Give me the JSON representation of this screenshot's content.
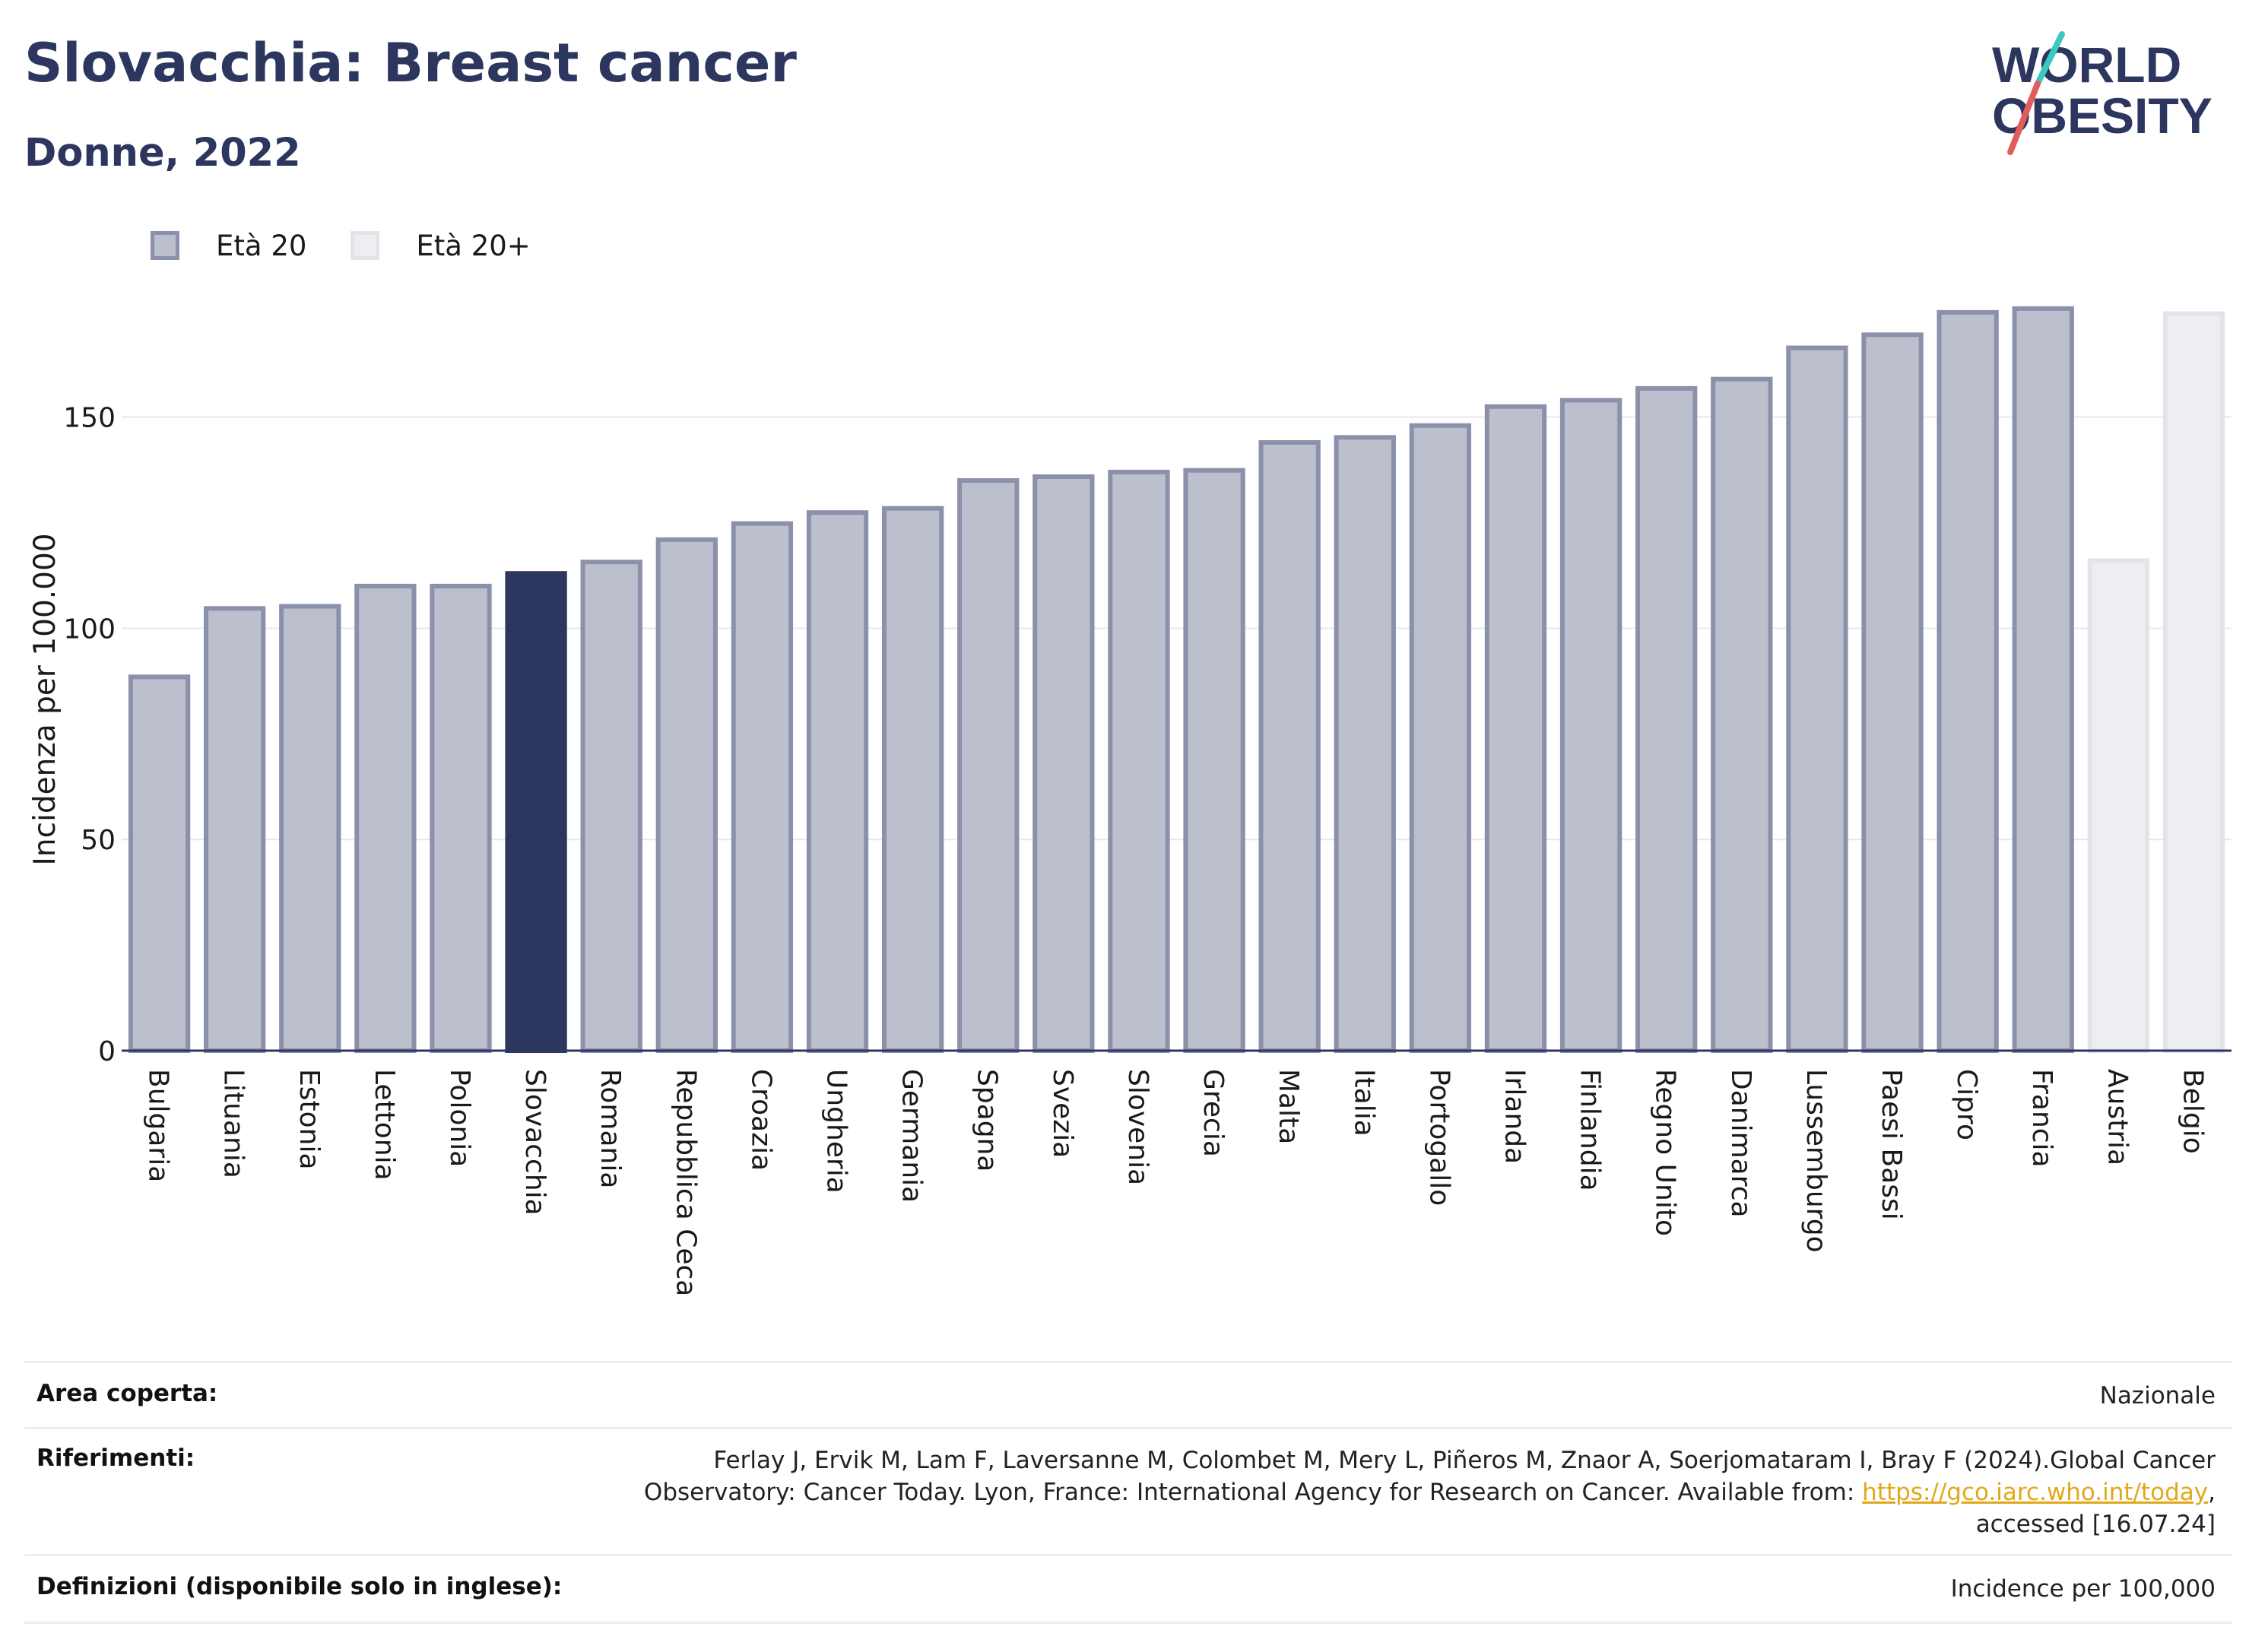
{
  "header": {
    "title": "Slovacchia: Breast cancer",
    "subtitle": "Donne, 2022"
  },
  "logo": {
    "line1": "WORLD",
    "line2": "OBESITY",
    "colors": [
      "#2c365e",
      "#e35c5c",
      "#3cc7c0"
    ]
  },
  "legend": [
    {
      "label": "Età 20",
      "color": "#8b90ab"
    },
    {
      "label": "Età 20+",
      "color": "#e3e4ea"
    }
  ],
  "colors": {
    "bar": "#bcbfcc",
    "bar_border": "#8b90ab",
    "highlight": "#2c365e",
    "bar_light": "#eeeef2",
    "bar_light_border": "#e3e4ea",
    "axis": "#2c365e",
    "grid": "#e6e8ec"
  },
  "chart_data": {
    "type": "bar",
    "title": "Slovacchia: Breast cancer",
    "subtitle": "Donne, 2022",
    "ylabel": "Incidenza per 100.000",
    "xlabel": "",
    "ylim": [
      0,
      180
    ],
    "yticks": [
      0,
      50,
      100,
      150
    ],
    "grid": true,
    "legend_position": "top-left",
    "highlight": "Slovacchia",
    "categories": [
      "Bulgaria",
      "Lituania",
      "Estonia",
      "Lettonia",
      "Polonia",
      "Slovacchia",
      "Romania",
      "Repubblica Ceca",
      "Croazia",
      "Ungheria",
      "Germania",
      "Spagna",
      "Svezia",
      "Slovenia",
      "Grecia",
      "Malta",
      "Italia",
      "Portogallo",
      "Irlanda",
      "Finlandia",
      "Regno Unito",
      "Danimarca",
      "Lussemburgo",
      "Paesi Bassi",
      "Cipro",
      "Francia",
      "Austria",
      "Belgio"
    ],
    "values": [
      88.5,
      104.7,
      105.2,
      110.0,
      110.0,
      113.0,
      115.7,
      121.0,
      124.8,
      127.4,
      128.4,
      135.0,
      135.9,
      137.0,
      137.4,
      144.0,
      145.2,
      148.0,
      152.5,
      154.0,
      156.8,
      159.0,
      166.4,
      169.5,
      174.8,
      175.7,
      116.0,
      174.5
    ],
    "groups": [
      "Età 20",
      "Età 20",
      "Età 20",
      "Età 20",
      "Età 20",
      "Età 20",
      "Età 20",
      "Età 20",
      "Età 20",
      "Età 20",
      "Età 20",
      "Età 20",
      "Età 20",
      "Età 20",
      "Età 20",
      "Età 20",
      "Età 20",
      "Età 20",
      "Età 20",
      "Età 20",
      "Età 20",
      "Età 20",
      "Età 20",
      "Età 20",
      "Età 20",
      "Età 20",
      "Età 20+",
      "Età 20+"
    ]
  },
  "meta": {
    "area_label": "Area coperta:",
    "area_value": "Nazionale",
    "ref_label": "Riferimenti:",
    "ref_text_1": "Ferlay J, Ervik M, Lam F, Laversanne M, Colombet M, Mery L, Piñeros M, Znaor A, Soerjomataram I, Bray F (2024).Global Cancer",
    "ref_text_2": "Observatory: Cancer Today. Lyon, France: International Agency for Research on Cancer. Available from: ",
    "ref_link": "https://gco.iarc.who.int/today",
    "ref_text_3": ",",
    "ref_text_4": "accessed [16.07.24]",
    "def_label": "Definizioni (disponibile solo in inglese):",
    "def_value": "Incidence per 100,000"
  }
}
